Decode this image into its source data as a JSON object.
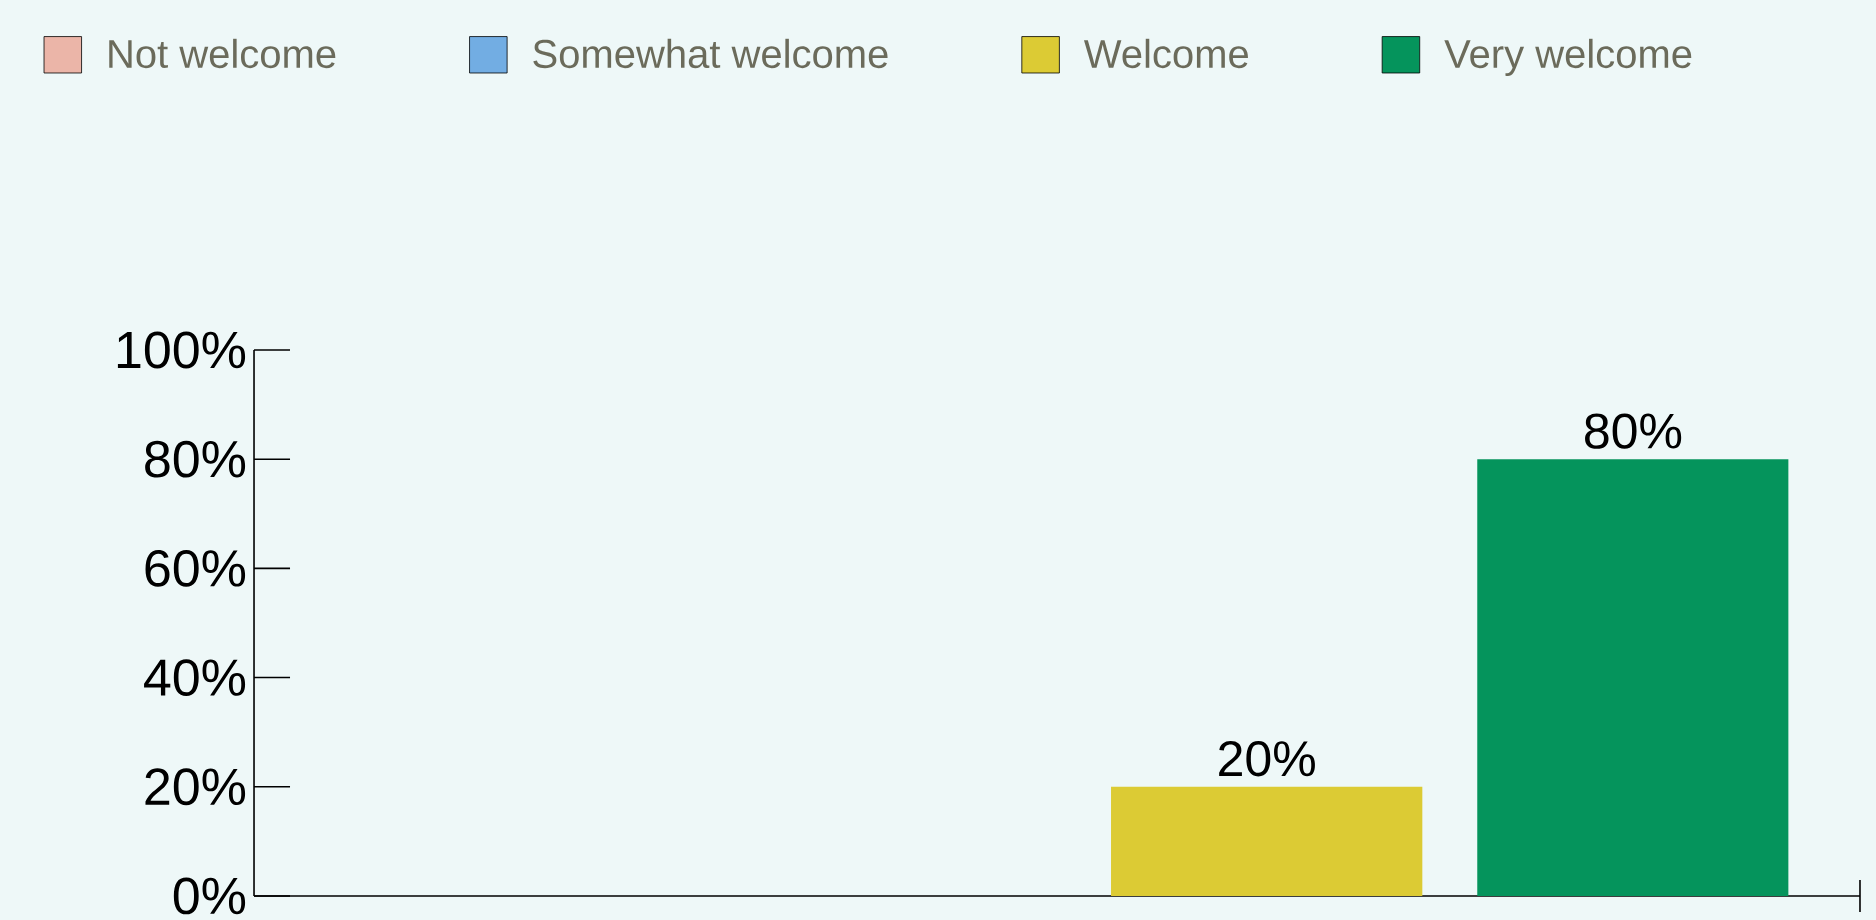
{
  "chart_data": {
    "type": "bar",
    "categories": [
      null,
      null,
      null,
      null
    ],
    "series": [
      {
        "name": "Not welcome",
        "color": "#ebb5a8",
        "values": [
          0,
          null,
          null,
          null
        ]
      },
      {
        "name": "Somewhat welcome",
        "color": "#72ade3",
        "values": [
          null,
          0,
          null,
          null
        ]
      },
      {
        "name": "Welcome",
        "color": "#dccb34",
        "values": [
          null,
          null,
          20,
          null
        ],
        "value_labels": [
          null,
          null,
          "20%",
          null
        ]
      },
      {
        "name": "Very welcome",
        "color": "#05945c",
        "values": [
          null,
          null,
          null,
          80
        ],
        "value_labels": [
          null,
          null,
          null,
          "80%"
        ]
      }
    ],
    "ylim": [
      0,
      100
    ],
    "yticks": [
      {
        "value": 0,
        "label": "0%"
      },
      {
        "value": 20,
        "label": "20%"
      },
      {
        "value": 40,
        "label": "40%"
      },
      {
        "value": 60,
        "label": "60%"
      },
      {
        "value": 80,
        "label": "80%"
      },
      {
        "value": 100,
        "label": "100%"
      }
    ],
    "tick_labels": "y",
    "legend": "top",
    "grid": false
  }
}
